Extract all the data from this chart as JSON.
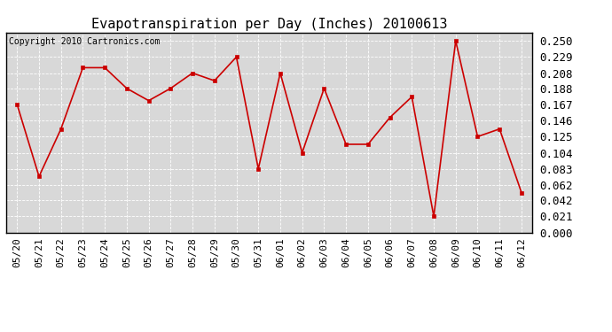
{
  "title": "Evapotranspiration per Day (Inches) 20100613",
  "copyright_text": "Copyright 2010 Cartronics.com",
  "x_labels": [
    "05/20",
    "05/21",
    "05/22",
    "05/23",
    "05/24",
    "05/25",
    "05/26",
    "05/27",
    "05/28",
    "05/29",
    "05/30",
    "05/31",
    "06/01",
    "06/02",
    "06/03",
    "06/04",
    "06/05",
    "06/06",
    "06/07",
    "06/08",
    "06/09",
    "06/10",
    "06/11",
    "06/12"
  ],
  "y_values": [
    0.167,
    0.073,
    0.135,
    0.215,
    0.215,
    0.188,
    0.172,
    0.188,
    0.208,
    0.198,
    0.229,
    0.083,
    0.208,
    0.104,
    0.188,
    0.115,
    0.115,
    0.15,
    0.177,
    0.021,
    0.25,
    0.125,
    0.135,
    0.052
  ],
  "y_ticks": [
    0.0,
    0.021,
    0.042,
    0.062,
    0.083,
    0.104,
    0.125,
    0.146,
    0.167,
    0.188,
    0.208,
    0.229,
    0.25
  ],
  "line_color": "#cc0000",
  "marker_color": "#cc0000",
  "plot_bg_color": "#d8d8d8",
  "fig_bg_color": "#ffffff",
  "grid_color": "#ffffff",
  "title_fontsize": 11,
  "copyright_fontsize": 7,
  "tick_fontsize": 8,
  "ytick_fontsize": 9
}
